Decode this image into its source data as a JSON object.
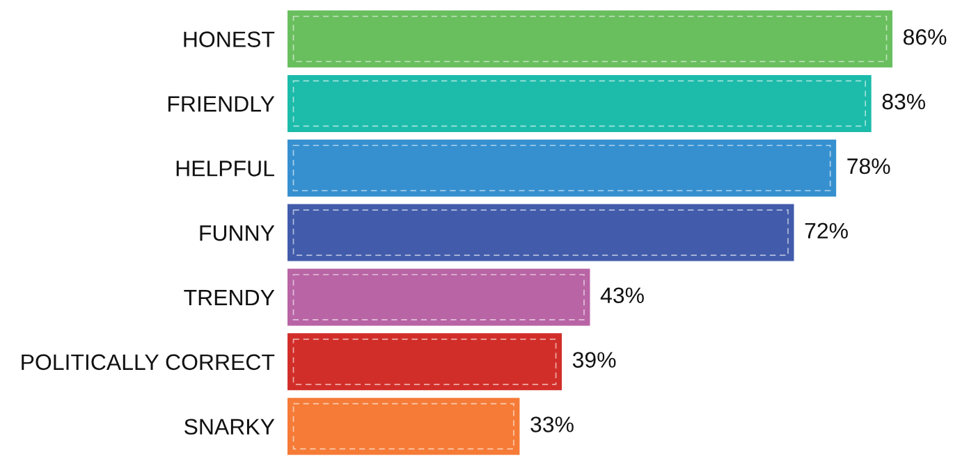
{
  "chart_data": {
    "type": "bar",
    "orientation": "horizontal",
    "categories": [
      "HONEST",
      "FRIENDLY",
      "HELPFUL",
      "FUNNY",
      "TRENDY",
      "POLITICALLY CORRECT",
      "SNARKY"
    ],
    "values": [
      86,
      83,
      78,
      72,
      43,
      39,
      33
    ],
    "colors": [
      "#69be5e",
      "#1cbbaa",
      "#3690cf",
      "#425cab",
      "#b864a5",
      "#d22e29",
      "#f57b37"
    ],
    "value_labels": [
      "86%",
      "83%",
      "78%",
      "72%",
      "43%",
      "39%",
      "33%"
    ],
    "tick_labels": "y"
  }
}
